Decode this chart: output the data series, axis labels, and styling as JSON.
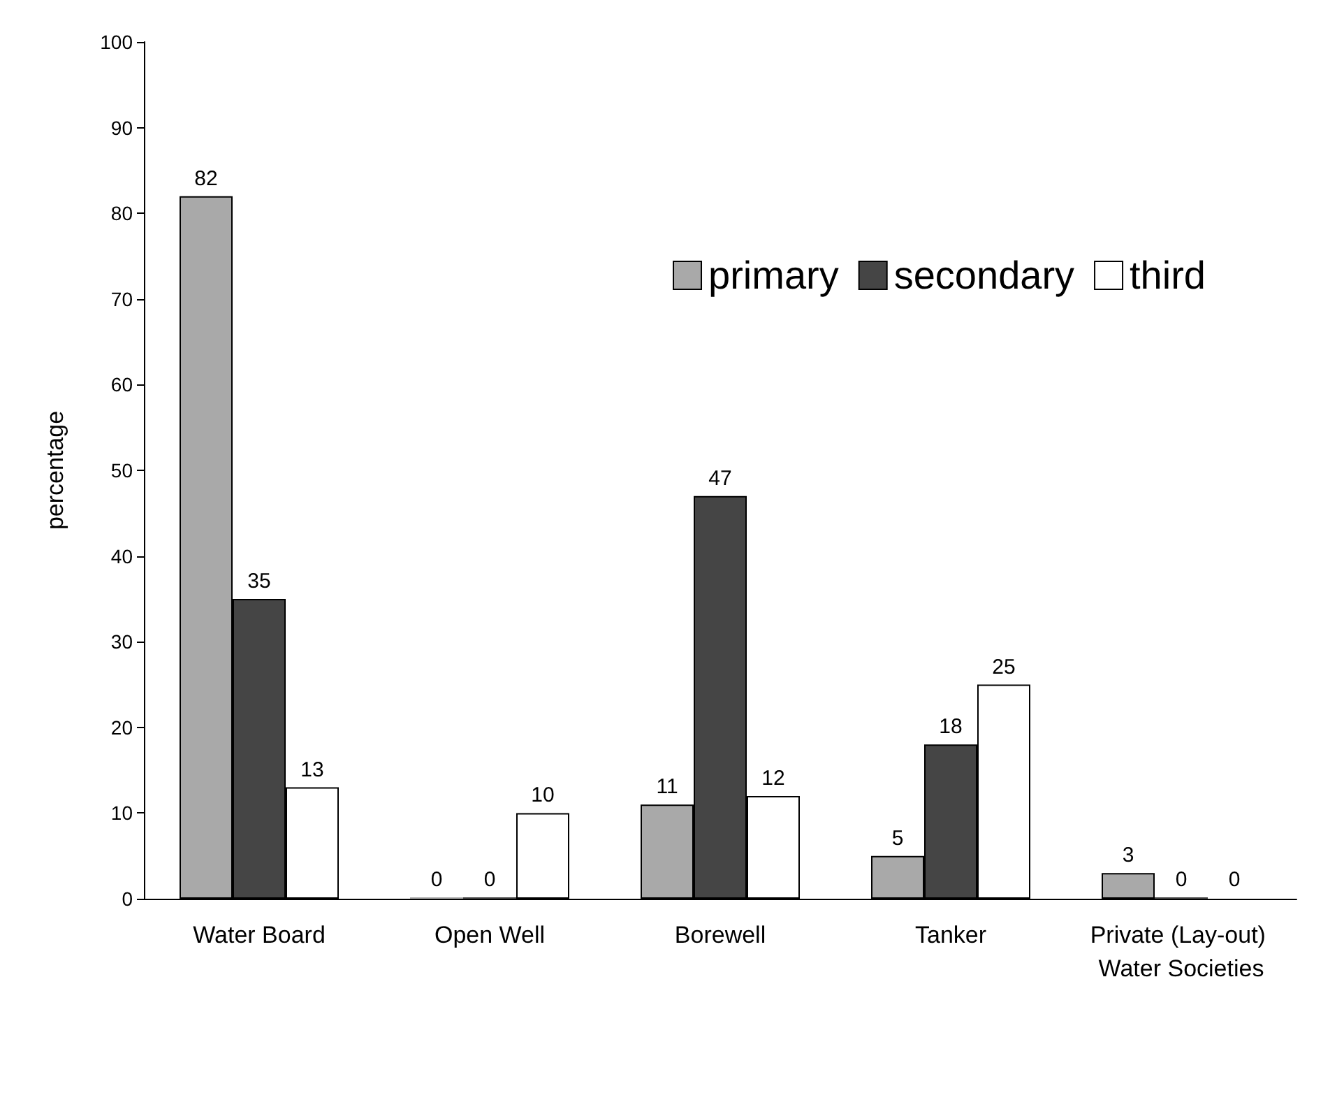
{
  "chart_data": {
    "type": "bar",
    "ylabel": "percentage",
    "categories": [
      "Water Board",
      "Open Well",
      "Borewell",
      "Tanker",
      "Private (Lay-out) Water Societies"
    ],
    "series": [
      {
        "name": "primary",
        "color": "#a9a9a9",
        "values": [
          82,
          0,
          11,
          5,
          3
        ]
      },
      {
        "name": "secondary",
        "color": "#454545",
        "values": [
          35,
          0,
          47,
          18,
          0
        ]
      },
      {
        "name": "third",
        "color": "#ffffff",
        "values": [
          13,
          10,
          12,
          25,
          0
        ]
      }
    ],
    "ylim": [
      0,
      100
    ],
    "yticks": [
      0,
      10,
      20,
      30,
      40,
      50,
      60,
      70,
      80,
      90,
      100
    ],
    "grid": false,
    "legend": "top right",
    "data_labels": true
  }
}
